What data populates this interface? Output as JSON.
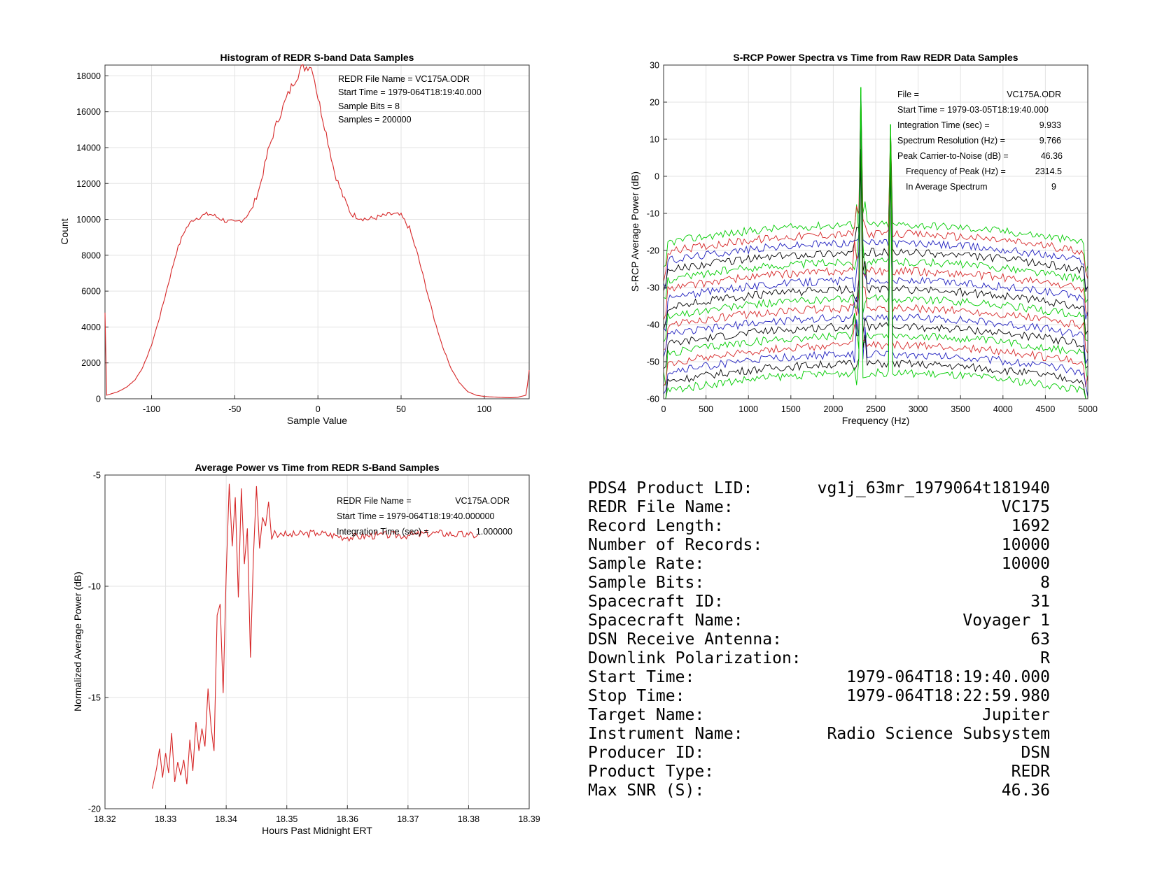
{
  "charts": {
    "histogram": {
      "title": "Histogram of REDR S-band Data Samples",
      "xlabel": "Sample Value",
      "ylabel": "Count",
      "xticks": [
        "-100",
        "-50",
        "0",
        "50",
        "100"
      ],
      "yticks": [
        "0",
        "2000",
        "4000",
        "6000",
        "8000",
        "10000",
        "12000",
        "14000",
        "16000",
        "18000"
      ],
      "annotations": [
        "REDR File Name = VC175A.ODR",
        "Start Time = 1979-064T18:19:40.000",
        "Sample Bits = 8",
        "Samples = 200000"
      ]
    },
    "spectra": {
      "title": "S-RCP Power Spectra vs Time from Raw REDR Data Samples",
      "xlabel": "Frequency (Hz)",
      "ylabel": "S-RCP Average Power (dB)",
      "xticks": [
        "0",
        "500",
        "1000",
        "1500",
        "2000",
        "2500",
        "3000",
        "3500",
        "4000",
        "4500",
        "5000"
      ],
      "yticks": [
        "-60",
        "-50",
        "-40",
        "-30",
        "-20",
        "-10",
        "0",
        "10",
        "20",
        "30"
      ],
      "annotations": [
        {
          "label": "File =",
          "value": "VC175A.ODR"
        },
        {
          "label": "Start Time = 1979-03-05T18:19:40.000",
          "value": ""
        },
        {
          "label": "Integration Time (sec) =",
          "value": "9.933"
        },
        {
          "label": "Spectrum Resolution (Hz) =",
          "value": "9.766"
        },
        {
          "label": "Peak Carrier-to-Noise (dB) =",
          "value": "46.36"
        },
        {
          "label": "Frequency of Peak (Hz) =",
          "value": "2314.5"
        },
        {
          "label": "In Average Spectrum",
          "value": "9"
        }
      ]
    },
    "power": {
      "title": "Average Power vs Time from REDR S-Band Samples",
      "xlabel": "Hours Past Midnight ERT",
      "ylabel": "Normalized Average Power (dB)",
      "xticks": [
        "18.32",
        "18.33",
        "18.34",
        "18.35",
        "18.36",
        "18.37",
        "18.38",
        "18.39"
      ],
      "yticks": [
        "-20",
        "-15",
        "-10",
        "-5"
      ],
      "annotations": [
        {
          "label": "REDR File Name =",
          "value": "VC175A.ODR"
        },
        {
          "label": "Start Time = 1979-064T18:19:40.000000",
          "value": ""
        },
        {
          "label": "Integration Time (sec) =",
          "value": "1.000000"
        }
      ]
    }
  },
  "chart_data": [
    {
      "type": "line",
      "title": "Histogram of REDR S-band Data Samples",
      "xlabel": "Sample Value",
      "ylabel": "Count",
      "xlim": [
        -128,
        127
      ],
      "ylim": [
        0,
        18600
      ],
      "color": "#d62728",
      "x": [
        -128,
        -127,
        -120,
        -115,
        -110,
        -105,
        -100,
        -95,
        -90,
        -85,
        -80,
        -75,
        -70,
        -65,
        -60,
        -55,
        -50,
        -45,
        -40,
        -35,
        -30,
        -25,
        -20,
        -15,
        -10,
        -7,
        -5,
        -3,
        0,
        5,
        10,
        15,
        20,
        25,
        30,
        35,
        40,
        45,
        50,
        55,
        60,
        65,
        70,
        75,
        80,
        85,
        90,
        95,
        100,
        105,
        110,
        115,
        120,
        125,
        126,
        127
      ],
      "y": [
        4800,
        200,
        400,
        650,
        1050,
        1800,
        3000,
        4600,
        6400,
        8200,
        9400,
        10000,
        10200,
        10300,
        10100,
        9900,
        9800,
        10000,
        10500,
        11800,
        13800,
        15300,
        16500,
        17600,
        18400,
        18500,
        18600,
        18300,
        16800,
        14800,
        12600,
        11300,
        10300,
        10100,
        10000,
        10100,
        10200,
        10300,
        10200,
        9500,
        8000,
        6200,
        4400,
        2900,
        1700,
        900,
        400,
        200,
        130,
        100,
        80,
        60,
        80,
        200,
        800,
        1600
      ]
    },
    {
      "type": "line",
      "title": "S-RCP Power Spectra vs Time from Raw REDR Data Samples",
      "xlabel": "Frequency (Hz)",
      "ylabel": "S-RCP Average Power (dB)",
      "xlim": [
        0,
        5000
      ],
      "ylim": [
        -60,
        30
      ],
      "series_colors": [
        "#00cc00",
        "#d62728",
        "#1f1fbf",
        "#000000"
      ],
      "baseline_levels": [
        -13,
        -15.5,
        -18,
        -20.5,
        -23,
        -25.5,
        -28,
        -30.5,
        -33,
        -35.5,
        -38,
        -40.5,
        -43,
        -45.5,
        -48,
        -50.5,
        -53
      ],
      "edge_droop_db": 5,
      "peaks": [
        {
          "x": 2314.5,
          "top": 24
        },
        {
          "x": 2670,
          "top": 14
        }
      ]
    },
    {
      "type": "line",
      "title": "Average Power vs Time from REDR S-Band Samples",
      "xlabel": "Hours Past Midnight ERT",
      "ylabel": "Normalized Average Power (dB)",
      "xlim": [
        18.32,
        18.39
      ],
      "ylim": [
        -20,
        -5
      ],
      "color": "#d62728",
      "x": [
        18.3278,
        18.3285,
        18.329,
        18.3295,
        18.33,
        18.3305,
        18.331,
        18.3315,
        18.332,
        18.3325,
        18.333,
        18.3335,
        18.334,
        18.3345,
        18.335,
        18.3355,
        18.336,
        18.3365,
        18.337,
        18.3375,
        18.3378,
        18.338,
        18.3385,
        18.339,
        18.3395,
        18.34,
        18.3405,
        18.341,
        18.3415,
        18.342,
        18.3425,
        18.343,
        18.3435,
        18.344,
        18.3445,
        18.345,
        18.3455,
        18.346,
        18.3465,
        18.347,
        18.3475,
        18.348,
        18.3485,
        18.349,
        18.35,
        18.355,
        18.36,
        18.365,
        18.37,
        18.375,
        18.38,
        18.3815
      ],
      "y": [
        -19.1,
        -18.2,
        -17.3,
        -18.6,
        -17.5,
        -18.4,
        -16.6,
        -18.8,
        -17.9,
        -18.5,
        -17.8,
        -18.9,
        -16.9,
        -18.3,
        -16.1,
        -17.4,
        -16.4,
        -17.2,
        -14.6,
        -16.3,
        -17.0,
        -17.4,
        -11.3,
        -10.8,
        -14.8,
        -9.5,
        -5.4,
        -8.2,
        -6.0,
        -10.5,
        -5.6,
        -9.0,
        -7.4,
        -13.2,
        -8.6,
        -5.5,
        -8.3,
        -6.9,
        -7.3,
        -6.2,
        -7.9,
        -7.5,
        -7.8,
        -7.6,
        -7.7,
        -7.6,
        -7.8,
        -7.7,
        -7.7,
        -7.6,
        -7.7,
        -7.7
      ]
    }
  ],
  "metadata": {
    "rows": [
      {
        "label": "PDS4 Product LID:",
        "value": "vg1j_63mr_1979064t181940"
      },
      {
        "label": "REDR File Name:",
        "value": "VC175"
      },
      {
        "label": "Record Length:",
        "value": "1692"
      },
      {
        "label": "Number of Records:",
        "value": "10000"
      },
      {
        "label": "Sample Rate:",
        "value": "10000"
      },
      {
        "label": "Sample Bits:",
        "value": "8"
      },
      {
        "label": "Spacecraft ID:",
        "value": "31"
      },
      {
        "label": "Spacecraft Name:",
        "value": "Voyager 1"
      },
      {
        "label": "DSN Receive Antenna:",
        "value": "63"
      },
      {
        "label": "Downlink Polarization:",
        "value": "R"
      },
      {
        "label": "Start Time:",
        "value": "1979-064T18:19:40.000"
      },
      {
        "label": "Stop Time:",
        "value": "1979-064T18:22:59.980"
      },
      {
        "label": "Target Name:",
        "value": "Jupiter"
      },
      {
        "label": "Instrument Name:",
        "value": "Radio Science Subsystem"
      },
      {
        "label": "Producer ID:",
        "value": "DSN"
      },
      {
        "label": "Product Type:",
        "value": "REDR"
      },
      {
        "label": "Max SNR (S):",
        "value": "46.36"
      }
    ]
  }
}
